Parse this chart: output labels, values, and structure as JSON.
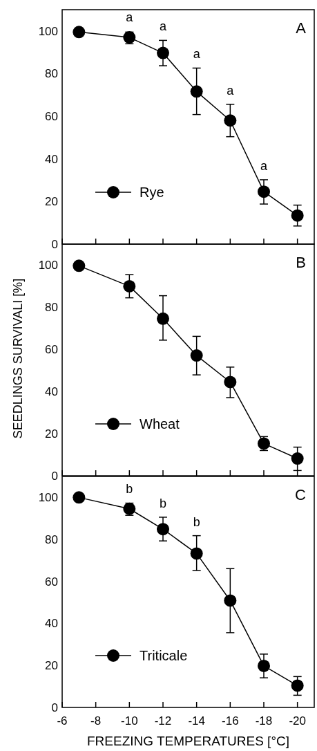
{
  "chart_data": [
    {
      "type": "line",
      "x": [
        -7,
        -10,
        -12,
        -14,
        -16,
        -18,
        -20
      ],
      "xlim": [
        -6,
        -21
      ],
      "xticks": [
        -6,
        -8,
        -10,
        -12,
        -14,
        -16,
        -18,
        -20
      ],
      "ylim": [
        0,
        110
      ],
      "yticks": [
        0,
        20,
        40,
        60,
        80,
        100
      ],
      "tick_labels": "y",
      "marker": "circle",
      "line_style": "solid",
      "legend": "bottom left",
      "series": [
        {
          "name": "Rye",
          "color": "#000000",
          "values": [
            99.5,
            97,
            89.7,
            71.6,
            58,
            24.6,
            13.4
          ],
          "errors": [
            null,
            [
              94,
              99.5
            ],
            [
              83.7,
              95.6
            ],
            [
              60.8,
              82.6
            ],
            [
              50.4,
              65.6
            ],
            [
              18.8,
              30.2
            ],
            [
              8.5,
              18.3
            ]
          ]
        }
      ],
      "annotations": [
        "A",
        {
          "text": "a",
          "x": -10,
          "y": 97
        },
        {
          "text": "a",
          "x": -12,
          "y": 89.7
        },
        {
          "text": "a",
          "x": -14,
          "y": 71.6
        },
        {
          "text": "a",
          "x": -16,
          "y": 58
        },
        {
          "text": "a",
          "x": -18,
          "y": 24.6
        }
      ]
    },
    {
      "type": "line",
      "x": [
        -7,
        -10,
        -12,
        -14,
        -16,
        -18,
        -20
      ],
      "xlim": [
        -6,
        -21
      ],
      "xticks": [
        -6,
        -8,
        -10,
        -12,
        -14,
        -16,
        -18,
        -20
      ],
      "ylim": [
        0,
        110
      ],
      "yticks": [
        0,
        20,
        40,
        60,
        80,
        100
      ],
      "tick_labels": "y",
      "marker": "circle",
      "line_style": "solid",
      "legend": "bottom left",
      "ylabel": "SEEDLINGS SURVIVALI [%]",
      "series": [
        {
          "name": "Wheat",
          "color": "#000000",
          "values": [
            99.7,
            90,
            74.6,
            57.1,
            44.5,
            15.3,
            8.2
          ],
          "errors": [
            null,
            [
              84.5,
              95.5
            ],
            [
              64.4,
              85.5
            ],
            [
              47.9,
              66.2
            ],
            [
              37.1,
              51.6
            ],
            [
              12,
              18.6
            ],
            [
              2.5,
              13.6
            ]
          ]
        }
      ],
      "annotations": [
        "B"
      ]
    },
    {
      "type": "line",
      "x": [
        -7,
        -10,
        -12,
        -14,
        -16,
        -18,
        -20
      ],
      "xlim": [
        -6,
        -21
      ],
      "xticks": [
        -6,
        -8,
        -10,
        -12,
        -14,
        -16,
        -18,
        -20
      ],
      "ylim": [
        0,
        110
      ],
      "yticks": [
        0,
        20,
        40,
        60,
        80,
        100
      ],
      "marker": "circle",
      "line_style": "solid",
      "legend": "bottom left",
      "xlabel": "FREEZING TEMPERATURES [°C]",
      "series": [
        {
          "name": "Triticale",
          "color": "#000000",
          "values": [
            100,
            94.6,
            84.9,
            73.3,
            50.9,
            19.8,
            10.4
          ],
          "errors": [
            null,
            [
              91.5,
              97.3
            ],
            [
              79.3,
              90.6
            ],
            [
              65.2,
              81.8
            ],
            [
              35.6,
              66.1
            ],
            [
              14.1,
              25.4
            ],
            [
              5.8,
              14.7
            ]
          ]
        }
      ],
      "annotations": [
        "C",
        {
          "text": "b",
          "x": -10,
          "y": 94.6
        },
        {
          "text": "b",
          "x": -12,
          "y": 84.9
        },
        {
          "text": "b",
          "x": -14,
          "y": 73.3
        }
      ]
    }
  ]
}
